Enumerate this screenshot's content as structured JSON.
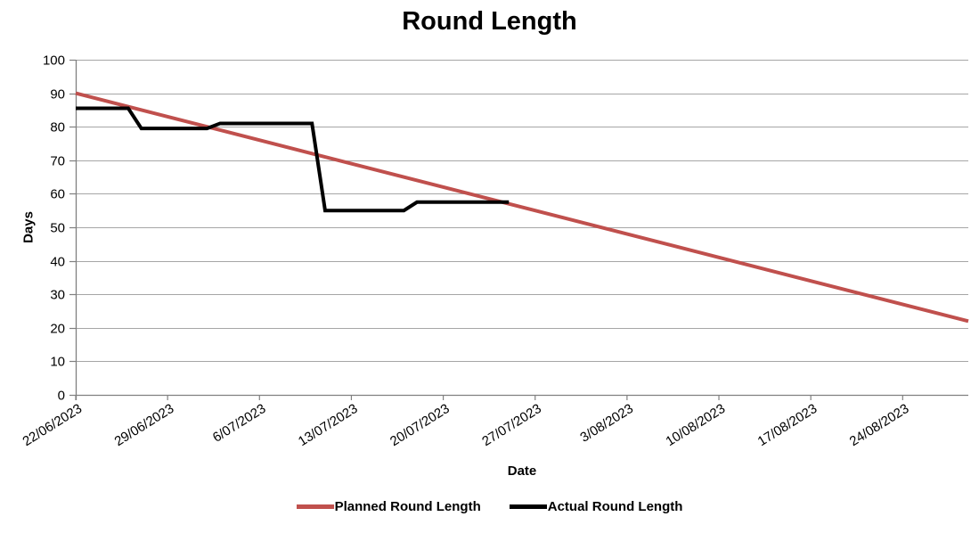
{
  "chart_data": {
    "type": "line",
    "title": "Round Length",
    "xlabel": "Date",
    "ylabel": "Days",
    "ylim": [
      0,
      100
    ],
    "yticks": [
      0,
      10,
      20,
      30,
      40,
      50,
      60,
      70,
      80,
      90,
      100
    ],
    "grid": "horizontal",
    "legend_position": "bottom",
    "x_axis": {
      "start_date": "22/06/2023",
      "axis_end_date": "29/08/2023",
      "total_days": 68,
      "tick_interval_days": 7,
      "tick_labels": [
        "22/06/2023",
        "29/06/2023",
        "6/07/2023",
        "13/07/2023",
        "20/07/2023",
        "27/07/2023",
        "3/08/2023",
        "10/08/2023",
        "17/08/2023",
        "24/08/2023"
      ]
    },
    "colors": {
      "planned": "#c0504d",
      "actual": "#000000",
      "gridline": "#a6a6a6",
      "axis": "#808080",
      "text": "#000000",
      "background": "#ffffff"
    },
    "series": [
      {
        "name": "Planned Round Length",
        "color": "#c0504d",
        "line_width": 4,
        "points": [
          {
            "date": "22/06/2023",
            "day": 0,
            "value": 90
          },
          {
            "date": "29/08/2023",
            "day": 68,
            "value": 22
          }
        ]
      },
      {
        "name": "Actual Round Length",
        "color": "#000000",
        "line_width": 4,
        "points": [
          {
            "date": "22/06/2023",
            "day": 0,
            "value": 85.5
          },
          {
            "date": "26/06/2023",
            "day": 4,
            "value": 85.5
          },
          {
            "date": "27/06/2023",
            "day": 5,
            "value": 79.5
          },
          {
            "date": "02/07/2023",
            "day": 10,
            "value": 79.5
          },
          {
            "date": "03/07/2023",
            "day": 11,
            "value": 81
          },
          {
            "date": "10/07/2023",
            "day": 18,
            "value": 81
          },
          {
            "date": "11/07/2023",
            "day": 19,
            "value": 55
          },
          {
            "date": "17/07/2023",
            "day": 25,
            "value": 55
          },
          {
            "date": "18/07/2023",
            "day": 26,
            "value": 57.5
          },
          {
            "date": "25/07/2023",
            "day": 33,
            "value": 57.5
          }
        ]
      }
    ]
  }
}
